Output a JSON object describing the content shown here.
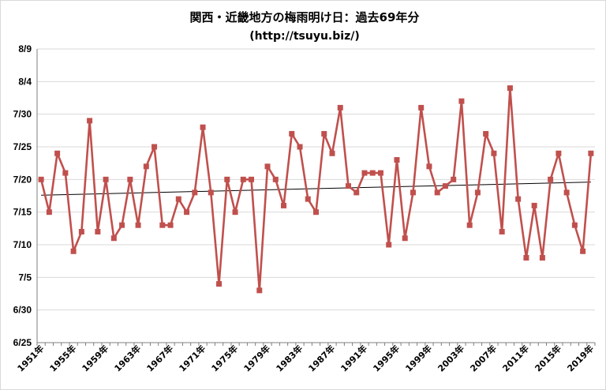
{
  "chart_data": {
    "type": "line",
    "title": "関西・近畿地方の梅雨明け日：過去69年分",
    "subtitle": "(http://tsuyu.biz/)",
    "y_tick_labels": [
      "6/25",
      "6/30",
      "7/5",
      "7/10",
      "7/15",
      "7/20",
      "7/25",
      "7/30",
      "8/4",
      "8/9"
    ],
    "x_tick_labels": [
      "1951年",
      "1955年",
      "1959年",
      "1963年",
      "1967年",
      "1971年",
      "1975年",
      "1979年",
      "1983年",
      "1987年",
      "1991年",
      "1995年",
      "1999年",
      "2003年",
      "2007年",
      "2011年",
      "2015年",
      "2019年"
    ],
    "ylim": [
      "6/25",
      "8/9"
    ],
    "grid": true,
    "legend": "none",
    "trendline": true,
    "colors": {
      "series": "#c0504d",
      "trend": "#000000",
      "grid": "#d9d9d9",
      "axis": "#7f7f7f"
    },
    "series": [
      {
        "years": [
          1951,
          1952,
          1953,
          1954,
          1955,
          1956,
          1957,
          1958,
          1959,
          1960,
          1961,
          1962,
          1963,
          1964,
          1965,
          1966,
          1967,
          1968,
          1969,
          1970,
          1971,
          1972,
          1973,
          1974,
          1975,
          1976,
          1977,
          1978,
          1979,
          1980,
          1981,
          1982,
          1983,
          1984,
          1985,
          1986,
          1987,
          1988,
          1989,
          1990,
          1991,
          1992,
          1993,
          1994,
          1995,
          1996,
          1997,
          1998,
          1999,
          2000,
          2001,
          2002,
          2003,
          2004,
          2005,
          2006,
          2007,
          2008,
          2009,
          2010,
          2011,
          2012,
          2013,
          2014,
          2015,
          2016,
          2017,
          2018,
          2019
        ],
        "values": [
          "7/20",
          "7/15",
          "7/24",
          "7/21",
          "7/9",
          "7/12",
          "7/29",
          "7/12",
          "7/20",
          "7/11",
          "7/13",
          "7/20",
          "7/13",
          "7/22",
          "7/25",
          "7/13",
          "7/13",
          "7/17",
          "7/15",
          "7/18",
          "7/28",
          "7/18",
          "7/4",
          "7/20",
          "7/15",
          "7/20",
          "7/20",
          "7/3",
          "7/22",
          "7/20",
          "7/16",
          "7/27",
          "7/25",
          "7/17",
          "7/15",
          "7/27",
          "7/24",
          "7/31",
          "7/19",
          "7/18",
          "7/21",
          "7/21",
          "7/21",
          "7/10",
          "7/23",
          "7/11",
          "7/18",
          "7/31",
          "7/22",
          "7/18",
          "7/19",
          "7/20",
          "8/1",
          "7/13",
          "7/18",
          "7/27",
          "7/24",
          "7/12",
          "8/3",
          "7/17",
          "7/8",
          "7/16",
          "7/8",
          "7/20",
          "7/24",
          "7/18",
          "7/13",
          "7/9",
          "7/24"
        ]
      }
    ]
  }
}
